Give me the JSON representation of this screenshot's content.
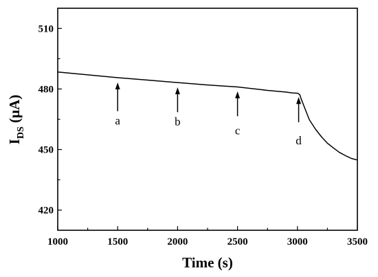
{
  "chart_data": {
    "type": "line",
    "title": "",
    "xlabel": "Time (s)",
    "ylabel_main": "I",
    "ylabel_sub": "DS",
    "ylabel_unit": " (μA)",
    "xlim": [
      1000,
      3500
    ],
    "ylim": [
      410,
      520
    ],
    "xticks": [
      1000,
      1500,
      2000,
      2500,
      3000,
      3500
    ],
    "yticks": [
      420,
      450,
      480,
      510
    ],
    "grid": false,
    "series": [
      {
        "x": [
          1000,
          1250,
          1500,
          1750,
          2000,
          2250,
          2500,
          2750,
          2900,
          2960,
          3000,
          3010,
          3020,
          3030,
          3050,
          3075,
          3100,
          3150,
          3200,
          3250,
          3300,
          3350,
          3400,
          3450,
          3500
        ],
        "values": [
          488.4,
          487.0,
          485.6,
          484.4,
          483.2,
          482.0,
          481.0,
          479.3,
          478.5,
          478.0,
          477.9,
          477.6,
          477.1,
          475.3,
          472.2,
          468.4,
          464.7,
          460.1,
          456.3,
          453.1,
          450.8,
          448.6,
          447.0,
          445.6,
          444.8
        ]
      }
    ],
    "annotations": [
      {
        "label": "a",
        "x": 1500,
        "arrow_tip": 483.2,
        "arrow_tail": 469.0,
        "text_y": 462.5
      },
      {
        "label": "b",
        "x": 2000,
        "arrow_tip": 480.8,
        "arrow_tail": 468.5,
        "text_y": 462.0
      },
      {
        "label": "c",
        "x": 2500,
        "arrow_tip": 478.8,
        "arrow_tail": 466.5,
        "text_y": 457.5
      },
      {
        "label": "d",
        "x": 3010,
        "arrow_tip": 476.0,
        "arrow_tail": 463.5,
        "text_y": 452.5
      }
    ]
  }
}
